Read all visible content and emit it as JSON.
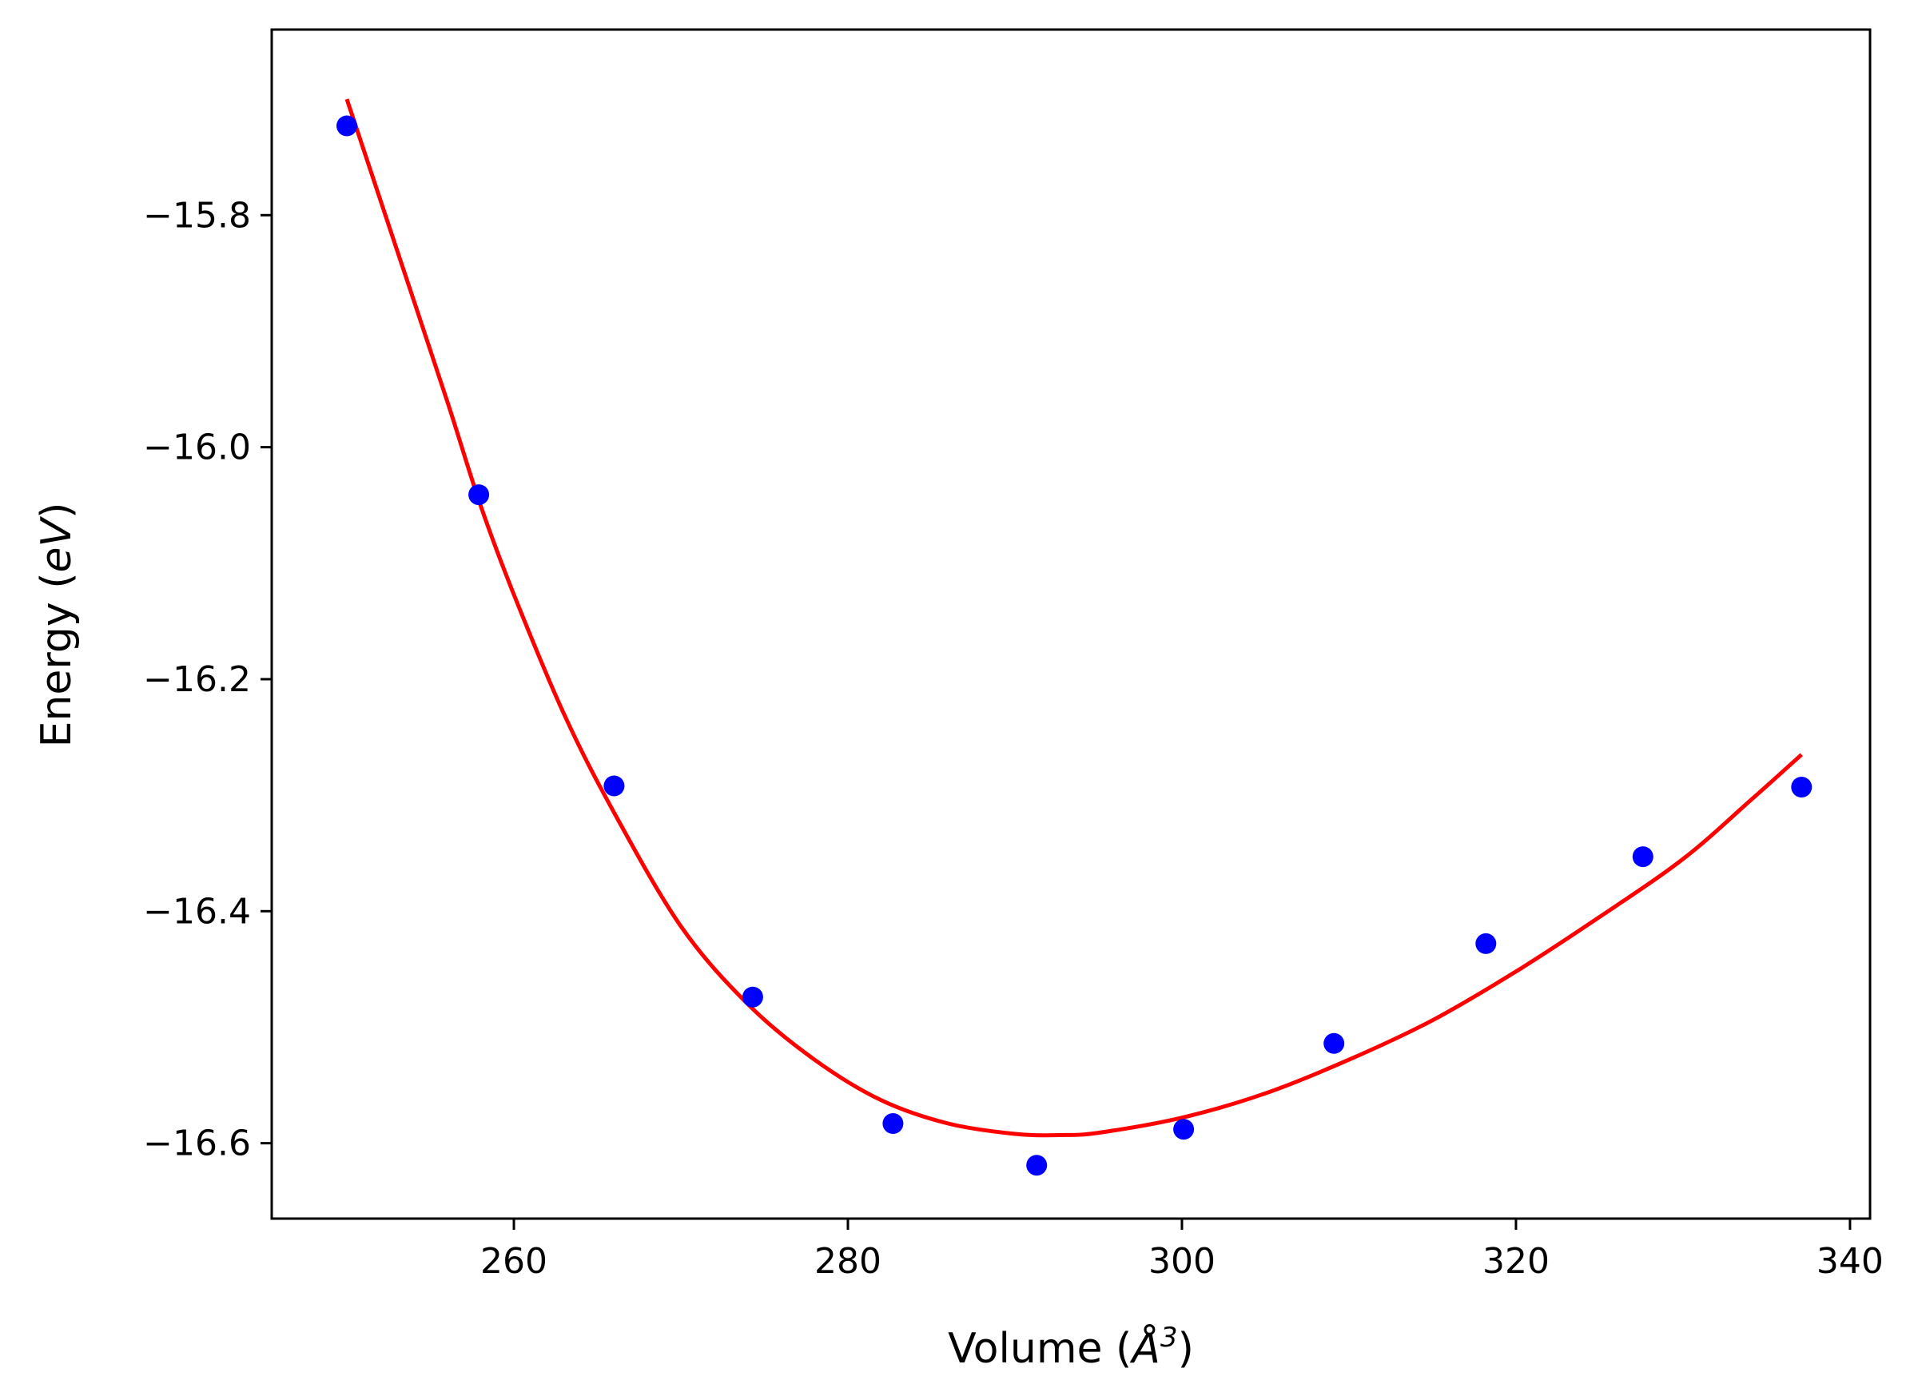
{
  "chart_data": {
    "type": "scatter",
    "title": "",
    "xlabel": "Volume (Å³)",
    "xlabel_parts": {
      "prefix": "Volume (",
      "unit": "Å",
      "sup": "3",
      "suffix": ")"
    },
    "ylabel": "Energy (eV)",
    "ylabel_parts": {
      "prefix": "Energy (",
      "unit": "eV",
      "suffix": ")"
    },
    "xlim": [
      245.5,
      341.2
    ],
    "ylim": [
      -16.665,
      -15.64
    ],
    "xticks": [
      {
        "value": 260,
        "label": "260"
      },
      {
        "value": 280,
        "label": "280"
      },
      {
        "value": 300,
        "label": "300"
      },
      {
        "value": 320,
        "label": "320"
      },
      {
        "value": 340,
        "label": "340"
      }
    ],
    "yticks": [
      {
        "value": -15.8,
        "label": "−15.8"
      },
      {
        "value": -16.0,
        "label": "−16.0"
      },
      {
        "value": -16.2,
        "label": "−16.2"
      },
      {
        "value": -16.4,
        "label": "−16.4"
      },
      {
        "value": -16.6,
        "label": "−16.6"
      }
    ],
    "grid": false,
    "series": [
      {
        "kind": "scatter",
        "color": "#0000ff",
        "points": [
          [
            250.0,
            -15.723
          ],
          [
            257.9,
            -16.041
          ],
          [
            266.0,
            -16.292
          ],
          [
            274.3,
            -16.474
          ],
          [
            282.7,
            -16.583
          ],
          [
            291.3,
            -16.619
          ],
          [
            300.1,
            -16.588
          ],
          [
            309.1,
            -16.514
          ],
          [
            318.2,
            -16.428
          ],
          [
            327.6,
            -16.353
          ],
          [
            337.1,
            -16.293
          ]
        ]
      },
      {
        "kind": "line",
        "color": "#ff0000",
        "points": [
          [
            250.0,
            -15.7
          ],
          [
            253.0,
            -15.83
          ],
          [
            256.0,
            -15.96
          ],
          [
            258.0,
            -16.05
          ],
          [
            260.0,
            -16.127
          ],
          [
            263.0,
            -16.23
          ],
          [
            266.0,
            -16.315
          ],
          [
            270.0,
            -16.413
          ],
          [
            274.0,
            -16.48
          ],
          [
            278.0,
            -16.528
          ],
          [
            282.0,
            -16.563
          ],
          [
            286.0,
            -16.583
          ],
          [
            290.0,
            -16.592
          ],
          [
            292.6,
            -16.593
          ],
          [
            295.0,
            -16.591
          ],
          [
            300.0,
            -16.578
          ],
          [
            305.0,
            -16.557
          ],
          [
            310.0,
            -16.528
          ],
          [
            315.0,
            -16.494
          ],
          [
            320.0,
            -16.452
          ],
          [
            325.0,
            -16.405
          ],
          [
            330.0,
            -16.355
          ],
          [
            334.0,
            -16.305
          ],
          [
            337.1,
            -16.265
          ]
        ]
      }
    ]
  }
}
